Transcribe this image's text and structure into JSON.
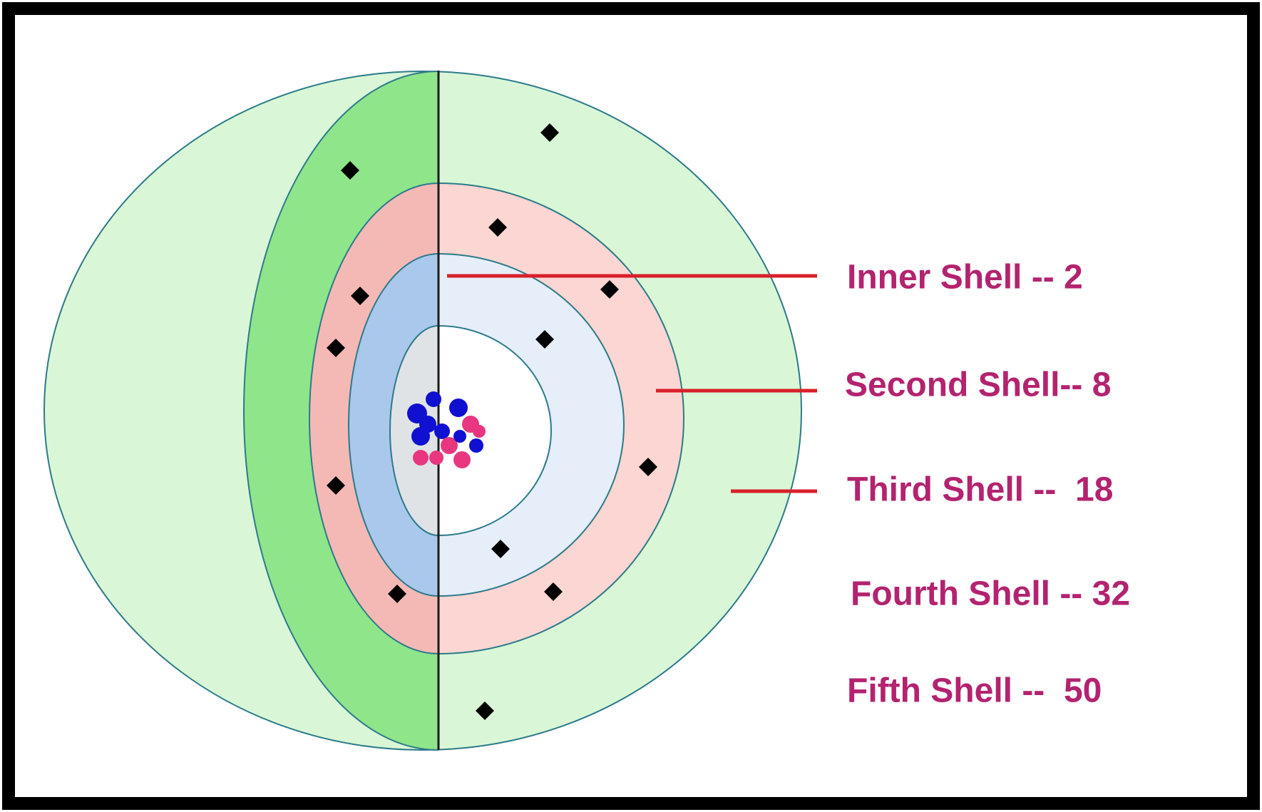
{
  "labels": [
    "Inner Shell -- 2",
    "Second Shell-- 8",
    "Third Shell --  18",
    "Fourth Shell -- 32",
    "Fifth Shell --  50"
  ]
}
